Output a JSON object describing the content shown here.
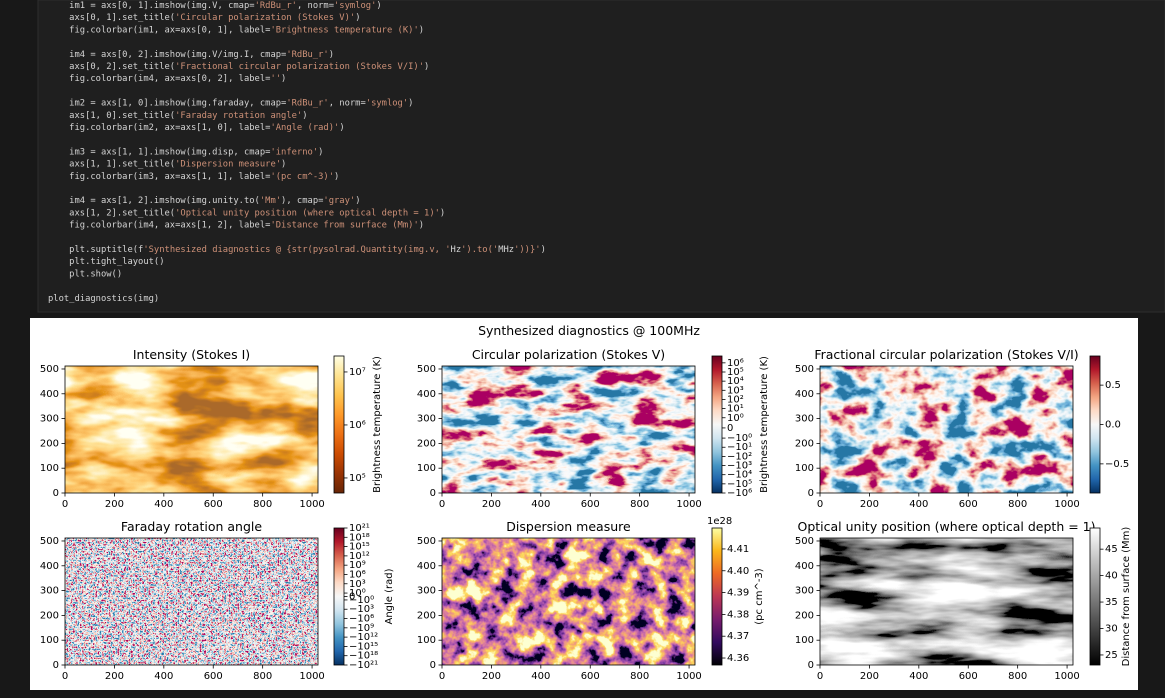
{
  "code": {
    "blocks": [
      [
        "    im1 = axs[0, 1].imshow(img.V, cmap='RdBu_r', norm='symlog')",
        "    axs[0, 1].set_title('Circular polarization (Stokes V)')",
        "    fig.colorbar(im1, ax=axs[0, 1], label='Brightness temperature (K)')"
      ],
      [
        "    im4 = axs[0, 2].imshow(img.V/img.I, cmap='RdBu_r')",
        "    axs[0, 2].set_title('Fractional circular polarization (Stokes V/I)')",
        "    fig.colorbar(im4, ax=axs[0, 2], label='')"
      ],
      [
        "    im2 = axs[1, 0].imshow(img.faraday, cmap='RdBu_r', norm='symlog')",
        "    axs[1, 0].set_title('Faraday rotation angle')",
        "    fig.colorbar(im2, ax=axs[1, 0], label='Angle (rad)')"
      ],
      [
        "    im3 = axs[1, 1].imshow(img.disp, cmap='inferno')",
        "    axs[1, 1].set_title('Dispersion measure')",
        "    fig.colorbar(im3, ax=axs[1, 1], label='(pc cm^-3)')"
      ],
      [
        "    im4 = axs[1, 2].imshow(img.unity.to('Mm'), cmap='gray')",
        "    axs[1, 2].set_title('Optical unity position (where optical depth = 1)')",
        "    fig.colorbar(im4, ax=axs[1, 2], label='Distance from surface (Mm)')"
      ],
      [
        "    plt.suptitle(f'Synthesized diagnostics @ {str(pysolrad.Quantity(img.v, 'Hz').to('MHz'))}')",
        "    plt.tight_layout()",
        "    plt.show()"
      ],
      [
        "plot_diagnostics(img)"
      ]
    ]
  },
  "suptitle": "Synthesized diagnostics @ 100MHz",
  "chart_data": [
    {
      "type": "image",
      "title": "Intensity (Stokes I)",
      "xlim": [
        0,
        1024
      ],
      "ylim": [
        0,
        512
      ],
      "xticks": [
        0,
        200,
        400,
        600,
        800,
        1000
      ],
      "yticks": [
        0,
        100,
        200,
        300,
        400,
        500
      ],
      "colorbar": {
        "label": "Brightness temperature (K)",
        "scale": "log",
        "clim": [
          52000,
          20000000
        ],
        "colors": [
          "#662506",
          "#993404",
          "#cc4c02",
          "#ec7014",
          "#fe9929",
          "#fec44f",
          "#fee391",
          "#ffffe5"
        ],
        "ticks": [
          {
            "value": 100000,
            "label": "10⁵"
          },
          {
            "value": 1000000,
            "label": "10⁶"
          },
          {
            "value": 10000000,
            "label": "10⁷"
          }
        ]
      }
    },
    {
      "type": "image",
      "title": "Circular polarization (Stokes V)",
      "xlim": [
        0,
        1024
      ],
      "ylim": [
        0,
        512
      ],
      "xticks": [
        0,
        200,
        400,
        600,
        800,
        1000
      ],
      "yticks": [
        0,
        100,
        200,
        300,
        400,
        500
      ],
      "colorbar": {
        "label": "Brightness temperature (K)",
        "scale": "symlog",
        "linthresh": 1,
        "clim": [
          -1000000,
          5600000
        ],
        "colors": [
          "#053061",
          "#2166ac",
          "#4393c3",
          "#92c5de",
          "#d1e5f0",
          "#f7f7f7",
          "#fddbc7",
          "#f4a582",
          "#d6604d",
          "#b2182b",
          "#67001f"
        ],
        "ticks": [
          {
            "value": 1000000,
            "label": "10⁶"
          },
          {
            "value": 100000,
            "label": "10⁵"
          },
          {
            "value": 10000,
            "label": "10⁴"
          },
          {
            "value": 1000,
            "label": "10³"
          },
          {
            "value": 100,
            "label": "10²"
          },
          {
            "value": 10,
            "label": "10¹"
          },
          {
            "value": 1,
            "label": "10⁰"
          },
          0,
          {
            "value": -1,
            "label": "−10⁰"
          },
          {
            "value": -10,
            "label": "−10¹"
          },
          {
            "value": -100,
            "label": "−10²"
          },
          {
            "value": -1000,
            "label": "−10³"
          },
          {
            "value": -10000,
            "label": "−10⁴"
          },
          {
            "value": -100000,
            "label": "−10⁵"
          },
          {
            "value": -1000000,
            "label": "−10⁶"
          }
        ]
      }
    },
    {
      "type": "image",
      "title": "Fractional circular polarization (Stokes V/I)",
      "xlim": [
        0,
        1024
      ],
      "ylim": [
        0,
        512
      ],
      "xticks": [
        0,
        200,
        400,
        600,
        800,
        1000
      ],
      "yticks": [
        0,
        100,
        200,
        300,
        400,
        500
      ],
      "colorbar": {
        "scale": "linear",
        "clim": [
          -0.87,
          0.87
        ],
        "colors": [
          "#053061",
          "#2166ac",
          "#4393c3",
          "#92c5de",
          "#d1e5f0",
          "#f7f7f7",
          "#fddbc7",
          "#f4a582",
          "#d6604d",
          "#b2182b",
          "#67001f"
        ],
        "ticks": [
          0.5,
          {
            "value": 0,
            "label": "0.0"
          },
          {
            "value": -0.5,
            "label": "−0.5"
          }
        ]
      }
    },
    {
      "type": "image",
      "title": "Faraday rotation angle",
      "xlim": [
        0,
        1024
      ],
      "ylim": [
        0,
        512
      ],
      "xticks": [
        0,
        200,
        400,
        600,
        800,
        1000
      ],
      "yticks": [
        0,
        100,
        200,
        300,
        400,
        500
      ],
      "colorbar": {
        "label": "Angle (rad)",
        "scale": "symlog",
        "linthresh": 1,
        "clim": [
          -1e+21,
          1e+21
        ],
        "colors": [
          "#053061",
          "#2166ac",
          "#4393c3",
          "#92c5de",
          "#d1e5f0",
          "#f7f7f7",
          "#fddbc7",
          "#f4a582",
          "#d6604d",
          "#b2182b",
          "#67001f"
        ],
        "ticks": [
          {
            "value": 1e+21,
            "label": "10²¹"
          },
          {
            "value": 1e+18,
            "label": "10¹⁸"
          },
          {
            "value": 1000000000000000.0,
            "label": "10¹⁵"
          },
          {
            "value": 1000000000000.0,
            "label": "10¹²"
          },
          {
            "value": 1000000000.0,
            "label": "10⁹"
          },
          {
            "value": 1000000.0,
            "label": "10⁶"
          },
          {
            "value": 1000,
            "label": "10³"
          },
          {
            "value": 1,
            "label": "10⁰"
          },
          0,
          {
            "value": -1,
            "label": "−10⁰"
          },
          {
            "value": -1000,
            "label": "−10³"
          },
          {
            "value": -1000000.0,
            "label": "−10⁶"
          },
          {
            "value": -1000000000.0,
            "label": "−10⁹"
          },
          {
            "value": -1000000000000.0,
            "label": "−10¹²"
          },
          {
            "value": -1000000000000000.0,
            "label": "−10¹⁵"
          },
          {
            "value": -1e+18,
            "label": "−10¹⁸"
          },
          {
            "value": -1e+21,
            "label": "−10²¹"
          }
        ]
      }
    },
    {
      "type": "image",
      "title": "Dispersion measure",
      "xlim": [
        0,
        1024
      ],
      "ylim": [
        0,
        512
      ],
      "xticks": [
        0,
        200,
        400,
        600,
        800,
        1000
      ],
      "yticks": [
        0,
        100,
        200,
        300,
        400,
        500
      ],
      "colorbar": {
        "label": "(pc cm^-3)",
        "scale": "linear",
        "clim": [
          4.3568,
          4.4196
        ],
        "offset_text": "1e28",
        "colors": [
          "#000004",
          "#320a5e",
          "#781c6d",
          "#bc3754",
          "#ed6925",
          "#fbb61a",
          "#fcffa4"
        ],
        "ticks": [
          4.36,
          4.37,
          4.38,
          4.39,
          {
            "value": 4.4,
            "label": "4.40"
          },
          4.41
        ]
      }
    },
    {
      "type": "image",
      "title": "Optical unity position (where optical depth = 1)",
      "xlim": [
        0,
        1024
      ],
      "ylim": [
        0,
        512
      ],
      "xticks": [
        0,
        200,
        400,
        600,
        800,
        1000
      ],
      "yticks": [
        0,
        100,
        200,
        300,
        400,
        500
      ],
      "colorbar": {
        "label": "Distance from surface (Mm)",
        "scale": "linear",
        "clim": [
          23.1,
          49
        ],
        "colors": [
          "#000000",
          "#ffffff"
        ],
        "ticks": [
          25,
          30,
          35,
          40,
          45
        ]
      }
    }
  ]
}
